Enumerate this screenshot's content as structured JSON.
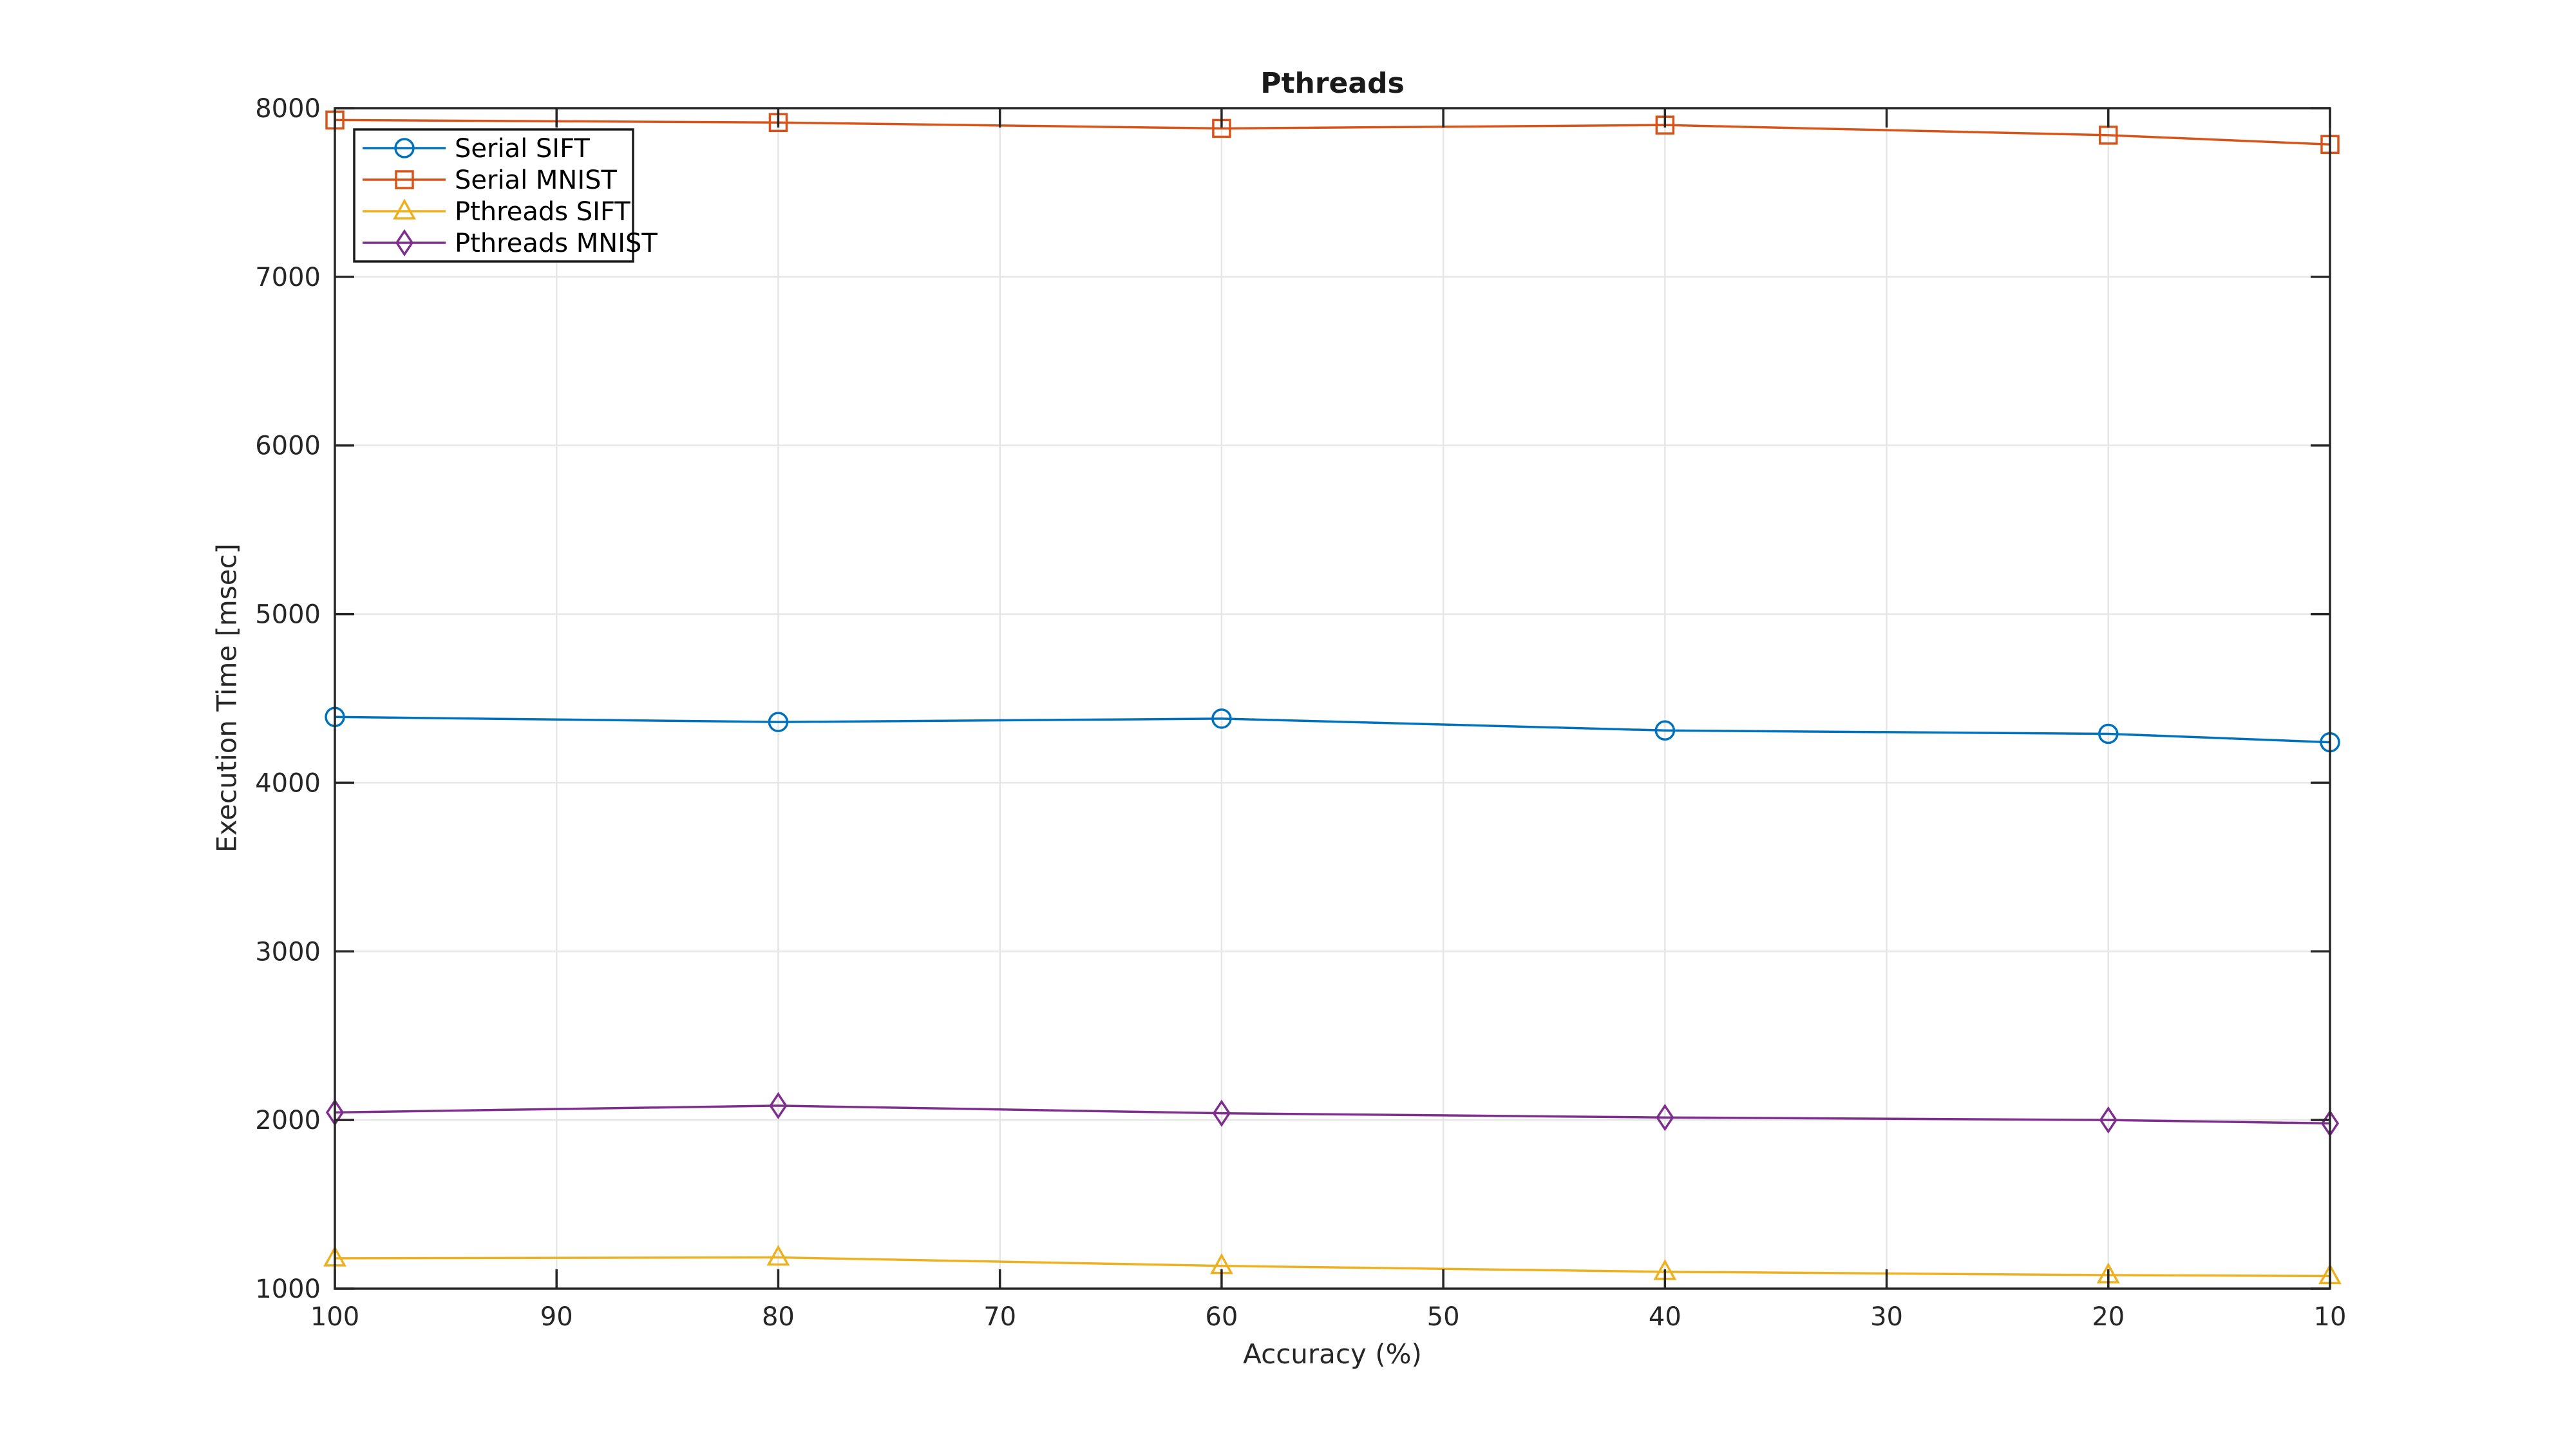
{
  "chart_data": {
    "type": "line",
    "title": "Pthreads",
    "xlabel": "Accuracy (%)",
    "ylabel": "Execution Time [msec]",
    "x_axis_reversed": true,
    "xlim": [
      100,
      10
    ],
    "ylim": [
      1000,
      8000
    ],
    "x_ticks": [
      100,
      90,
      80,
      70,
      60,
      50,
      40,
      30,
      20,
      10
    ],
    "y_ticks": [
      1000,
      2000,
      3000,
      4000,
      5000,
      6000,
      7000,
      8000
    ],
    "grid": true,
    "legend_position": "top-left",
    "x": [
      100,
      80,
      60,
      40,
      20,
      10
    ],
    "series": [
      {
        "name": "Serial SIFT",
        "marker": "circle",
        "color": "#0072BD",
        "values": [
          4390,
          4360,
          4380,
          4310,
          4290,
          4240
        ]
      },
      {
        "name": "Serial MNIST",
        "marker": "square",
        "color": "#D95319",
        "values": [
          7930,
          7915,
          7880,
          7900,
          7840,
          7785
        ]
      },
      {
        "name": "Pthreads SIFT",
        "marker": "triangle",
        "color": "#EDB120",
        "values": [
          1180,
          1185,
          1135,
          1100,
          1080,
          1075
        ]
      },
      {
        "name": "Pthreads MNIST",
        "marker": "diamond",
        "color": "#7E2F8E",
        "values": [
          2045,
          2085,
          2040,
          2015,
          2000,
          1980
        ]
      }
    ],
    "colors": {
      "axis": "#262626",
      "grid": "#E6E6E6",
      "background": "#FFFFFF",
      "text": "#262626",
      "legend_border": "#1a1a1a"
    }
  }
}
